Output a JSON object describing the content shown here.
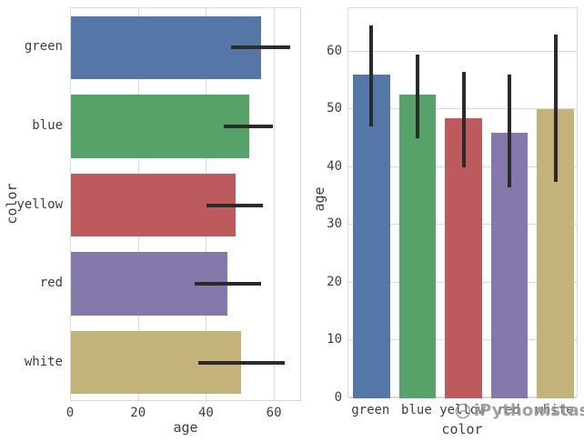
{
  "figure": {
    "background": "#ffffff",
    "watermark": {
      "text": "iPythonistas",
      "icon": "python-circle-logo"
    }
  },
  "style": {
    "grid_color": "#d9d9d9",
    "text_color": "#3d3d3d",
    "errorbar_color": "#2b2b2b",
    "watermark_color": "#8b8b92",
    "palette": {
      "green": "#5577a8",
      "blue": "#57a268",
      "yellow": "#bd5a5e",
      "red": "#8579ab",
      "white": "#c3b279"
    }
  },
  "chart_data": [
    {
      "type": "bar",
      "orientation": "horizontal",
      "title": "",
      "categories": [
        "green",
        "blue",
        "yellow",
        "red",
        "white"
      ],
      "values": [
        56,
        52.5,
        48.5,
        46,
        50
      ],
      "error_low": [
        47,
        45,
        40,
        36.5,
        37.5
      ],
      "error_high": [
        64.5,
        59.5,
        56.5,
        56,
        63
      ],
      "xlabel": "age",
      "ylabel": "color",
      "xlim": [
        0,
        68
      ],
      "xticks": [
        0,
        20,
        40,
        60
      ],
      "grid": true,
      "legend": false
    },
    {
      "type": "bar",
      "orientation": "vertical",
      "title": "",
      "categories": [
        "green",
        "blue",
        "yellow",
        "red",
        "white"
      ],
      "values": [
        56,
        52.5,
        48.5,
        46,
        50
      ],
      "error_low": [
        47,
        45,
        40,
        36.5,
        37.5
      ],
      "error_high": [
        64.5,
        59.5,
        56.5,
        56,
        63
      ],
      "xlabel": "color",
      "ylabel": "age",
      "ylim": [
        0,
        67.5
      ],
      "yticks": [
        0,
        10,
        20,
        30,
        40,
        50,
        60
      ],
      "grid": true,
      "legend": false
    }
  ]
}
